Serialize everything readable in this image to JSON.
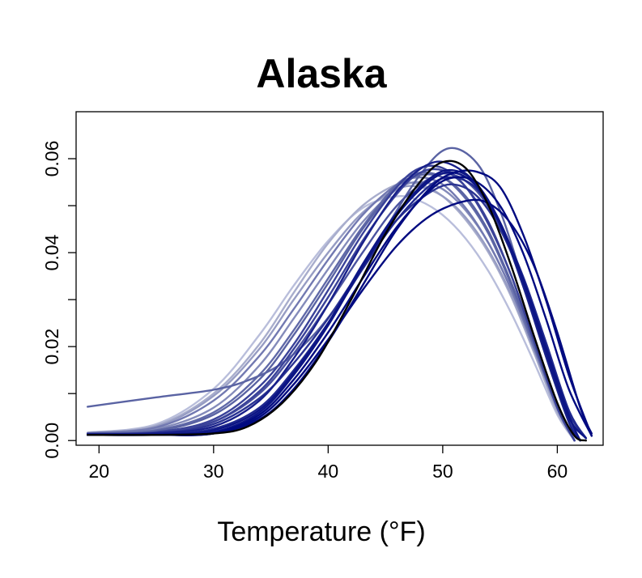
{
  "chart_data": {
    "type": "line",
    "title": "Alaska",
    "xlabel": "Temperature (°F)",
    "ylabel": "",
    "xlim": [
      18,
      64
    ],
    "ylim": [
      -0.001,
      0.07
    ],
    "xticks": [
      20,
      30,
      40,
      50,
      60
    ],
    "yticks": [
      0.0,
      0.01,
      0.02,
      0.03,
      0.04,
      0.05,
      0.06
    ],
    "ytick_labels": [
      "0.00",
      "",
      "0.02",
      "",
      "0.04",
      "",
      "0.06"
    ],
    "xtick_labels": [
      "20",
      "30",
      "40",
      "50",
      "60"
    ],
    "grid": false,
    "legend": "none",
    "colors": {
      "primary": "#000080",
      "highlight": "#000000",
      "light": "#b9bedb"
    },
    "series": [
      {
        "color": "#5a63a3",
        "x": [
          19,
          25,
          30,
          33,
          36,
          39,
          42,
          45,
          48,
          50.5,
          53,
          55,
          57,
          59,
          61,
          62
        ],
        "y": [
          0.0072,
          0.0092,
          0.0108,
          0.0128,
          0.0165,
          0.0232,
          0.033,
          0.045,
          0.0565,
          0.0622,
          0.059,
          0.049,
          0.034,
          0.018,
          0.004,
          0.0
        ]
      },
      {
        "color": "#000000",
        "x": [
          19,
          25,
          30,
          33,
          36,
          39,
          42,
          45,
          48,
          50,
          52,
          54,
          56,
          58,
          60,
          61.5,
          62.5
        ],
        "y": [
          0.0012,
          0.0012,
          0.0015,
          0.003,
          0.008,
          0.017,
          0.03,
          0.044,
          0.055,
          0.0593,
          0.058,
          0.05,
          0.037,
          0.022,
          0.008,
          0.001,
          0.0
        ]
      },
      {
        "color": "#000a80",
        "x": [
          19,
          25,
          30,
          34,
          37,
          40,
          43,
          46,
          49,
          51,
          53,
          55,
          57,
          59,
          61,
          63
        ],
        "y": [
          0.0012,
          0.0012,
          0.0015,
          0.0045,
          0.011,
          0.021,
          0.033,
          0.045,
          0.054,
          0.057,
          0.0572,
          0.054,
          0.044,
          0.03,
          0.014,
          0.001
        ]
      },
      {
        "color": "#000a80",
        "x": [
          19,
          25,
          30,
          34,
          37,
          40,
          43,
          46,
          49,
          52,
          54,
          56,
          58,
          60,
          62,
          63
        ],
        "y": [
          0.0012,
          0.0012,
          0.0015,
          0.005,
          0.012,
          0.0215,
          0.032,
          0.0415,
          0.048,
          0.051,
          0.0505,
          0.046,
          0.037,
          0.023,
          0.007,
          0.0015
        ]
      },
      {
        "color": "#0c1585",
        "x": [
          19,
          25,
          30,
          34,
          37,
          40,
          43,
          46,
          49,
          51,
          53,
          55,
          57,
          59,
          61,
          62.5
        ],
        "y": [
          0.0012,
          0.0012,
          0.0018,
          0.006,
          0.014,
          0.0245,
          0.037,
          0.048,
          0.0555,
          0.057,
          0.054,
          0.046,
          0.034,
          0.019,
          0.005,
          0.0005
        ]
      },
      {
        "color": "#18208a",
        "x": [
          19,
          25,
          30,
          34,
          37,
          40,
          43,
          46,
          48.5,
          50.5,
          53,
          55,
          57,
          59,
          61,
          62
        ],
        "y": [
          0.0014,
          0.0016,
          0.003,
          0.0085,
          0.0175,
          0.029,
          0.042,
          0.053,
          0.0585,
          0.059,
          0.0545,
          0.046,
          0.033,
          0.018,
          0.004,
          0.0
        ]
      },
      {
        "color": "#2a3392",
        "x": [
          19,
          25,
          30,
          34,
          37,
          40,
          43,
          46,
          49,
          51,
          53,
          55,
          57,
          59,
          61,
          62.5
        ],
        "y": [
          0.0013,
          0.0015,
          0.0035,
          0.009,
          0.0165,
          0.026,
          0.037,
          0.047,
          0.053,
          0.0545,
          0.052,
          0.045,
          0.034,
          0.02,
          0.006,
          0.0005
        ]
      },
      {
        "color": "#3a4299",
        "x": [
          19,
          25,
          30,
          34,
          37,
          40,
          43,
          46,
          48,
          50,
          52,
          54,
          56,
          58,
          60,
          61.5
        ],
        "y": [
          0.0014,
          0.0018,
          0.0045,
          0.0115,
          0.0205,
          0.032,
          0.044,
          0.054,
          0.058,
          0.058,
          0.054,
          0.046,
          0.035,
          0.021,
          0.007,
          0.0
        ]
      },
      {
        "color": "#4a52a0",
        "x": [
          19,
          25,
          30,
          34,
          37,
          40,
          43,
          46,
          49,
          51,
          53,
          55,
          57,
          59,
          61,
          62
        ],
        "y": [
          0.0013,
          0.0017,
          0.004,
          0.01,
          0.0185,
          0.029,
          0.04,
          0.05,
          0.056,
          0.0565,
          0.053,
          0.0455,
          0.034,
          0.0195,
          0.005,
          0.0
        ]
      },
      {
        "color": "#6069a8",
        "x": [
          19,
          25,
          30,
          34,
          37,
          40,
          43,
          46,
          48,
          50,
          52,
          54,
          56,
          58,
          60,
          61.5
        ],
        "y": [
          0.0015,
          0.0022,
          0.006,
          0.014,
          0.0235,
          0.0345,
          0.0455,
          0.0545,
          0.057,
          0.056,
          0.0515,
          0.044,
          0.033,
          0.02,
          0.007,
          0.0
        ]
      },
      {
        "color": "#7279b1",
        "x": [
          19,
          25,
          30,
          34,
          37,
          40,
          43,
          46,
          48,
          50,
          52,
          54,
          56,
          58,
          60,
          61.5
        ],
        "y": [
          0.0016,
          0.0028,
          0.0085,
          0.018,
          0.028,
          0.0385,
          0.048,
          0.0545,
          0.056,
          0.0545,
          0.0495,
          0.042,
          0.032,
          0.0195,
          0.007,
          0.0
        ]
      },
      {
        "color": "#848bba",
        "x": [
          19,
          25,
          30,
          34,
          37,
          40,
          43,
          46,
          48,
          50,
          52,
          54,
          56,
          58,
          60,
          61.5
        ],
        "y": [
          0.0015,
          0.0025,
          0.007,
          0.016,
          0.026,
          0.0365,
          0.0465,
          0.0535,
          0.055,
          0.0535,
          0.049,
          0.042,
          0.032,
          0.0195,
          0.007,
          0.0
        ]
      },
      {
        "color": "#969cc3",
        "x": [
          19,
          25,
          30,
          34,
          37,
          40,
          43,
          46,
          48,
          50,
          52,
          54,
          56,
          58,
          60,
          61.5
        ],
        "y": [
          0.0016,
          0.003,
          0.0095,
          0.0195,
          0.03,
          0.04,
          0.0485,
          0.0535,
          0.054,
          0.052,
          0.0475,
          0.0405,
          0.031,
          0.019,
          0.0065,
          0.0
        ]
      },
      {
        "color": "#a8adcc",
        "x": [
          19,
          25,
          30,
          34,
          37,
          40,
          43,
          46,
          48,
          50,
          52,
          54,
          56,
          58,
          60,
          61.5
        ],
        "y": [
          0.0016,
          0.0032,
          0.01,
          0.0205,
          0.0315,
          0.042,
          0.05,
          0.0545,
          0.0545,
          0.052,
          0.047,
          0.04,
          0.0305,
          0.0185,
          0.006,
          0.0
        ]
      },
      {
        "color": "#b9bedb",
        "x": [
          19,
          25,
          30,
          34,
          37,
          40,
          43,
          46,
          48,
          50,
          52,
          54,
          56,
          58,
          60,
          61.5
        ],
        "y": [
          0.0017,
          0.0035,
          0.011,
          0.0225,
          0.033,
          0.0425,
          0.0495,
          0.052,
          0.051,
          0.048,
          0.043,
          0.036,
          0.027,
          0.0165,
          0.0055,
          0.0
        ]
      },
      {
        "color": "#20298f",
        "x": [
          19,
          25,
          30,
          34,
          37,
          40,
          43,
          46,
          49,
          51,
          53,
          55,
          57,
          59,
          61,
          62.5
        ],
        "y": [
          0.0012,
          0.0013,
          0.0025,
          0.007,
          0.015,
          0.025,
          0.0365,
          0.047,
          0.0545,
          0.056,
          0.0535,
          0.046,
          0.035,
          0.021,
          0.0065,
          0.0005
        ]
      },
      {
        "color": "#000a80",
        "x": [
          19,
          25,
          30,
          34,
          37,
          40,
          43,
          46,
          49,
          51,
          53,
          55,
          57,
          59,
          61,
          63
        ],
        "y": [
          0.0012,
          0.0012,
          0.0016,
          0.0055,
          0.013,
          0.023,
          0.0345,
          0.0455,
          0.0535,
          0.056,
          0.055,
          0.05,
          0.04,
          0.026,
          0.011,
          0.001
        ]
      },
      {
        "color": "#3a4299",
        "x": [
          19,
          25,
          30,
          34,
          37,
          40,
          43,
          46,
          48,
          50,
          52,
          54,
          56,
          58,
          60,
          61.5
        ],
        "y": [
          0.0013,
          0.0016,
          0.004,
          0.0105,
          0.0195,
          0.0305,
          0.0425,
          0.0525,
          0.057,
          0.0575,
          0.054,
          0.0465,
          0.035,
          0.021,
          0.007,
          0.0
        ]
      },
      {
        "color": "#5a63a3",
        "x": [
          19,
          25,
          30,
          34,
          37,
          40,
          43,
          46,
          48,
          50,
          52,
          54,
          56,
          58,
          60,
          61.5
        ],
        "y": [
          0.0014,
          0.002,
          0.0055,
          0.013,
          0.0225,
          0.0335,
          0.045,
          0.054,
          0.0565,
          0.056,
          0.052,
          0.0445,
          0.0335,
          0.0205,
          0.007,
          0.0
        ]
      },
      {
        "color": "#0c1585",
        "x": [
          19,
          25,
          30,
          34,
          37,
          40,
          43,
          46,
          49,
          51,
          53,
          55,
          57,
          59,
          61,
          62
        ],
        "y": [
          0.0012,
          0.0013,
          0.0022,
          0.0065,
          0.0145,
          0.025,
          0.0375,
          0.0485,
          0.056,
          0.0575,
          0.0545,
          0.0465,
          0.0345,
          0.02,
          0.0055,
          0.0
        ]
      }
    ]
  }
}
